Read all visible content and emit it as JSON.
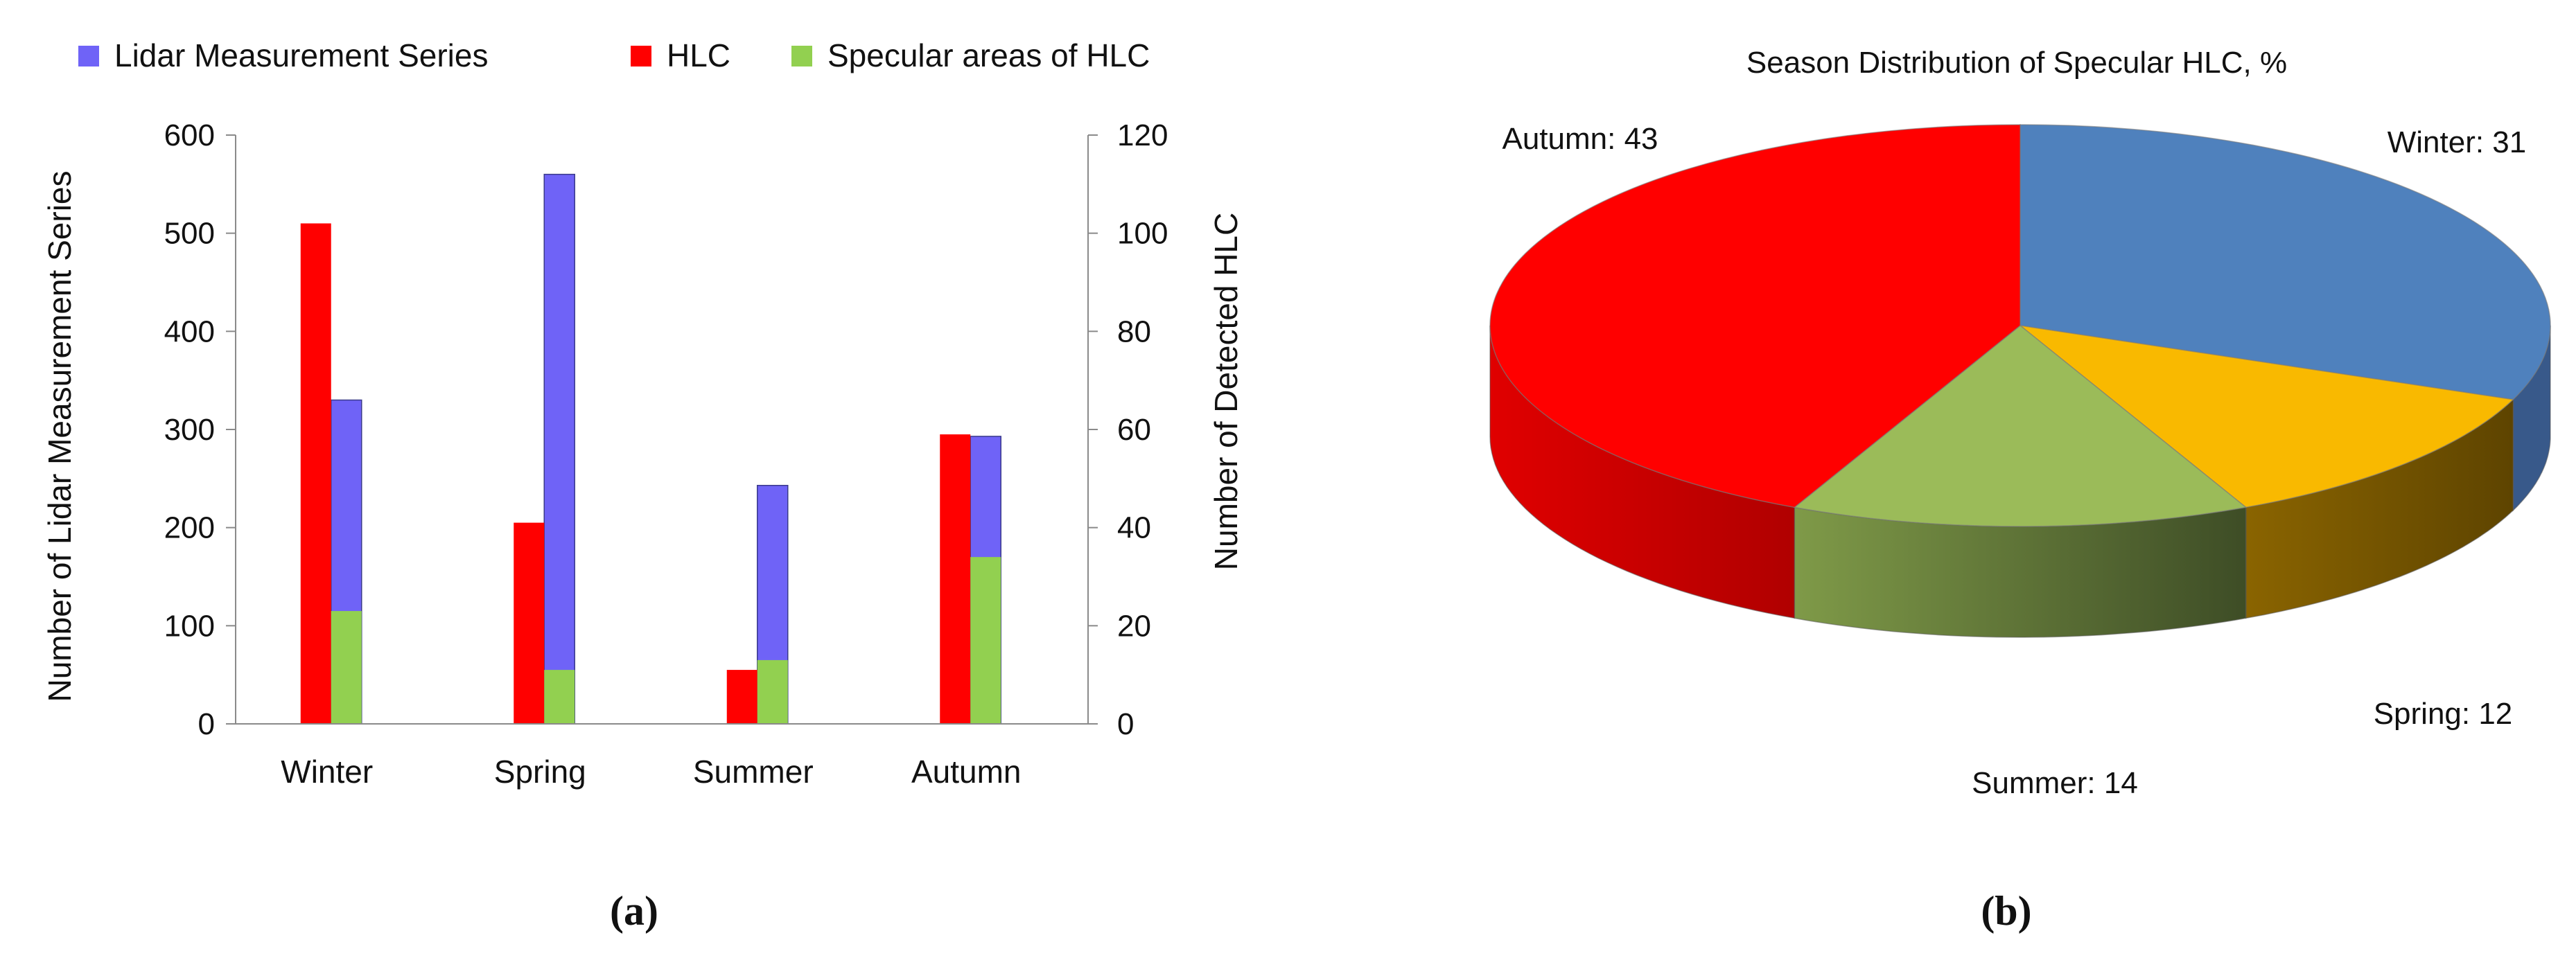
{
  "chart_data": [
    {
      "type": "bar",
      "categories": [
        "Winter",
        "Spring",
        "Summer",
        "Autumn"
      ],
      "ylabel": "Number of Lidar Measurement Series",
      "ylim": [
        0,
        600
      ],
      "y_ticks": [
        "0",
        "100",
        "200",
        "300",
        "400",
        "500",
        "600"
      ],
      "y2label": "Number of Detected HLC",
      "y2lim": [
        0,
        120
      ],
      "y2_ticks": [
        "0",
        "20",
        "40",
        "60",
        "80",
        "100",
        "120"
      ],
      "legend_position": "top",
      "grid": false,
      "series": [
        {
          "name": "Lidar Measurement Series",
          "axis": "left",
          "values": [
            330,
            560,
            243,
            293
          ],
          "color": "#6f63f7"
        },
        {
          "name": "HLC",
          "axis": "right",
          "values": [
            102,
            41,
            11,
            59
          ],
          "color": "#ff0000"
        },
        {
          "name": "Specular areas of HLC",
          "axis": "right",
          "values": [
            23,
            11,
            13,
            34
          ],
          "color": "#92d050"
        }
      ],
      "panel_label": "(a)"
    },
    {
      "type": "pie",
      "title": "Season Distribution of Specular HLC, %",
      "slices": [
        {
          "label": "Winter: 31",
          "name": "Winter",
          "value": 31,
          "color": "#4f81bd"
        },
        {
          "label": "Spring: 12",
          "name": "Spring",
          "value": 12,
          "color": "#f9b900"
        },
        {
          "label": "Summer: 14",
          "name": "Summer",
          "value": 14,
          "color": "#9bbb59"
        },
        {
          "label": "Autumn: 43",
          "name": "Autumn",
          "value": 43,
          "color": "#ff0000"
        }
      ],
      "style": "3d",
      "panel_label": "(b)"
    }
  ]
}
